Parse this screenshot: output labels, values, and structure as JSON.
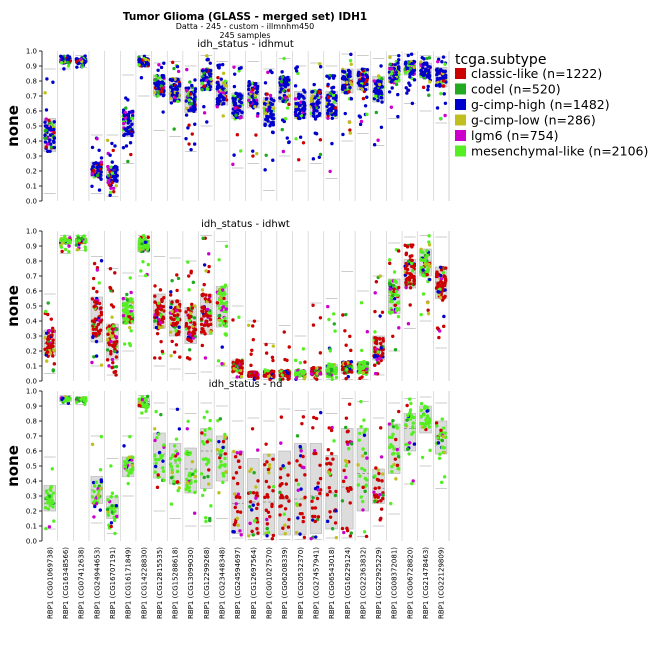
{
  "title": "Tumor Glioma (GLASS - merged set) IDH1",
  "subtitle": "Datta - 245 - custom - illmnhm450",
  "sample_count": "245 samples",
  "legend": {
    "title": "tcga.subtype",
    "items": [
      {
        "label": "classic-like (n=1222)",
        "color": "#cc0000"
      },
      {
        "label": "codel (n=520)",
        "color": "#1faa1f"
      },
      {
        "label": "g-cimp-high (n=1482)",
        "color": "#0000cc"
      },
      {
        "label": "g-cimp-low (n=286)",
        "color": "#bfbf1f"
      },
      {
        "label": "lgm6 (n=754)",
        "color": "#cc00cc"
      },
      {
        "label": "mesenchymal-like (n=2106)",
        "color": "#55ee22"
      }
    ]
  },
  "chart_data": {
    "type": "scatter",
    "ylabel": "none",
    "ylim": [
      0,
      1
    ],
    "yticks": [
      "0.0",
      "0.1",
      "0.2",
      "0.3",
      "0.4",
      "0.5",
      "0.6",
      "0.7",
      "0.8",
      "0.9",
      "1.0"
    ],
    "categories": [
      "RBP1 (CG01069738)",
      "RBP1 (CG16348566)",
      "RBP1 (CG07412638)",
      "RBP1 (CG24944653)",
      "RBP1 (CG16707191)",
      "RBP1 (CG16171849)",
      "RBP1 (CG14228830)",
      "RBP1 (CG12815535)",
      "RBP1 (CG15288618)",
      "RBP1 (CG13099030)",
      "RBP1 (CG12299268)",
      "RBP1 (CG23448348)",
      "RBP1 (CG24594697)",
      "RBP1 (CG12697564)",
      "RBP1 (CG01027570)",
      "RBP1 (CG06208339)",
      "RBP1 (CG20532370)",
      "RBP1 (CG27457941)",
      "RBP1 (CG06543018)",
      "RBP1 (CG16229124)",
      "RBP1 (CG22363832)",
      "RBP1 (CG22925229)",
      "RBP1 (CG08372081)",
      "RBP1 (CG06728820)",
      "RBP1 (CG21478463)",
      "RBP1 (CG22129809)"
    ],
    "panels": [
      {
        "title": "idh_status - idhmut",
        "dominant": [
          "g-cimp-high",
          "g-cimp-high",
          "g-cimp-high",
          "g-cimp-high",
          "g-cimp-high",
          "g-cimp-high",
          "g-cimp-high",
          "g-cimp-high",
          "g-cimp-high",
          "g-cimp-high",
          "g-cimp-high",
          "g-cimp-high",
          "g-cimp-high",
          "g-cimp-high",
          "g-cimp-high",
          "g-cimp-high",
          "g-cimp-high",
          "g-cimp-high",
          "g-cimp-high",
          "g-cimp-high",
          "g-cimp-high",
          "g-cimp-high",
          "g-cimp-high",
          "g-cimp-high",
          "g-cimp-high",
          "g-cimp-high"
        ],
        "box": [
          {
            "q1": 0.33,
            "median": 0.45,
            "q3": 0.55,
            "min": 0.05,
            "max": 0.88
          },
          {
            "q1": 0.92,
            "median": 0.94,
            "q3": 0.95,
            "min": 0.88,
            "max": 0.97
          },
          {
            "q1": 0.92,
            "median": 0.94,
            "q3": 0.95,
            "min": 0.89,
            "max": 0.97
          },
          {
            "q1": 0.16,
            "median": 0.21,
            "q3": 0.26,
            "min": 0.05,
            "max": 0.44
          },
          {
            "q1": 0.12,
            "median": 0.17,
            "q3": 0.23,
            "min": 0.03,
            "max": 0.44
          },
          {
            "q1": 0.43,
            "median": 0.52,
            "q3": 0.6,
            "min": 0.25,
            "max": 0.84
          },
          {
            "q1": 0.9,
            "median": 0.93,
            "q3": 0.95,
            "min": 0.7,
            "max": 0.97
          },
          {
            "q1": 0.7,
            "median": 0.78,
            "q3": 0.84,
            "min": 0.47,
            "max": 0.92
          },
          {
            "q1": 0.66,
            "median": 0.74,
            "q3": 0.82,
            "min": 0.43,
            "max": 0.93
          },
          {
            "q1": 0.59,
            "median": 0.68,
            "q3": 0.76,
            "min": 0.33,
            "max": 0.9
          },
          {
            "q1": 0.74,
            "median": 0.82,
            "q3": 0.88,
            "min": 0.5,
            "max": 0.97
          },
          {
            "q1": 0.64,
            "median": 0.73,
            "q3": 0.8,
            "min": 0.4,
            "max": 0.93
          },
          {
            "q1": 0.55,
            "median": 0.64,
            "q3": 0.72,
            "min": 0.22,
            "max": 0.9
          },
          {
            "q1": 0.62,
            "median": 0.71,
            "q3": 0.79,
            "min": 0.25,
            "max": 0.93
          },
          {
            "q1": 0.5,
            "median": 0.6,
            "q3": 0.69,
            "min": 0.07,
            "max": 0.88
          },
          {
            "q1": 0.66,
            "median": 0.75,
            "q3": 0.83,
            "min": 0.3,
            "max": 0.95
          },
          {
            "q1": 0.55,
            "median": 0.65,
            "q3": 0.73,
            "min": 0.2,
            "max": 0.9
          },
          {
            "q1": 0.56,
            "median": 0.66,
            "q3": 0.74,
            "min": 0.25,
            "max": 0.92
          },
          {
            "q1": 0.55,
            "median": 0.65,
            "q3": 0.73,
            "min": 0.15,
            "max": 0.9
          },
          {
            "q1": 0.72,
            "median": 0.81,
            "q3": 0.88,
            "min": 0.4,
            "max": 0.98
          },
          {
            "q1": 0.74,
            "median": 0.82,
            "q3": 0.88,
            "min": 0.45,
            "max": 0.97
          },
          {
            "q1": 0.66,
            "median": 0.75,
            "q3": 0.83,
            "min": 0.37,
            "max": 0.95
          },
          {
            "q1": 0.79,
            "median": 0.86,
            "q3": 0.91,
            "min": 0.55,
            "max": 0.97
          },
          {
            "q1": 0.84,
            "median": 0.89,
            "q3": 0.93,
            "min": 0.65,
            "max": 0.98
          },
          {
            "q1": 0.82,
            "median": 0.88,
            "q3": 0.92,
            "min": 0.6,
            "max": 0.97
          },
          {
            "q1": 0.76,
            "median": 0.84,
            "q3": 0.89,
            "min": 0.52,
            "max": 0.96
          }
        ]
      },
      {
        "title": "idh_status - idhwt",
        "dominant": [
          "classic-like",
          "mesenchymal-like",
          "mesenchymal-like",
          "classic-like",
          "classic-like",
          "mesenchymal-like",
          "mesenchymal-like",
          "classic-like",
          "classic-like",
          "classic-like",
          "classic-like",
          "mesenchymal-like",
          "classic-like",
          "classic-like",
          "classic-like",
          "classic-like",
          "mesenchymal-like",
          "classic-like",
          "mesenchymal-like",
          "classic-like",
          "mesenchymal-like",
          "classic-like",
          "mesenchymal-like",
          "classic-like",
          "mesenchymal-like",
          "classic-like"
        ],
        "box": [
          {
            "q1": 0.17,
            "median": 0.25,
            "q3": 0.34,
            "min": 0.05,
            "max": 0.58
          },
          {
            "q1": 0.92,
            "median": 0.94,
            "q3": 0.95,
            "min": 0.85,
            "max": 0.97
          },
          {
            "q1": 0.92,
            "median": 0.94,
            "q3": 0.95,
            "min": 0.87,
            "max": 0.97
          },
          {
            "q1": 0.26,
            "median": 0.4,
            "q3": 0.56,
            "min": 0.1,
            "max": 0.83
          },
          {
            "q1": 0.14,
            "median": 0.25,
            "q3": 0.38,
            "min": 0.04,
            "max": 0.75
          },
          {
            "q1": 0.38,
            "median": 0.47,
            "q3": 0.55,
            "min": 0.2,
            "max": 0.72
          },
          {
            "q1": 0.86,
            "median": 0.91,
            "q3": 0.94,
            "min": 0.7,
            "max": 0.97
          },
          {
            "q1": 0.35,
            "median": 0.47,
            "q3": 0.58,
            "min": 0.1,
            "max": 0.83
          },
          {
            "q1": 0.3,
            "median": 0.42,
            "q3": 0.54,
            "min": 0.08,
            "max": 0.82
          },
          {
            "q1": 0.25,
            "median": 0.36,
            "q3": 0.49,
            "min": 0.05,
            "max": 0.8
          },
          {
            "q1": 0.31,
            "median": 0.45,
            "q3": 0.58,
            "min": 0.06,
            "max": 0.97
          },
          {
            "q1": 0.36,
            "median": 0.5,
            "q3": 0.63,
            "min": 0.1,
            "max": 0.93
          },
          {
            "q1": 0.06,
            "median": 0.09,
            "q3": 0.14,
            "min": 0.02,
            "max": 0.5
          },
          {
            "q1": 0.03,
            "median": 0.04,
            "q3": 0.06,
            "min": 0.01,
            "max": 0.4
          },
          {
            "q1": 0.03,
            "median": 0.05,
            "q3": 0.07,
            "min": 0.01,
            "max": 0.25
          },
          {
            "q1": 0.03,
            "median": 0.05,
            "q3": 0.07,
            "min": 0.01,
            "max": 0.37
          },
          {
            "q1": 0.03,
            "median": 0.05,
            "q3": 0.07,
            "min": 0.01,
            "max": 0.3
          },
          {
            "q1": 0.04,
            "median": 0.06,
            "q3": 0.09,
            "min": 0.01,
            "max": 0.52
          },
          {
            "q1": 0.04,
            "median": 0.07,
            "q3": 0.11,
            "min": 0.01,
            "max": 0.55
          },
          {
            "q1": 0.05,
            "median": 0.08,
            "q3": 0.13,
            "min": 0.01,
            "max": 0.73
          },
          {
            "q1": 0.05,
            "median": 0.08,
            "q3": 0.13,
            "min": 0.01,
            "max": 0.6
          },
          {
            "q1": 0.14,
            "median": 0.21,
            "q3": 0.3,
            "min": 0.04,
            "max": 0.7
          },
          {
            "q1": 0.45,
            "median": 0.57,
            "q3": 0.68,
            "min": 0.2,
            "max": 0.92
          },
          {
            "q1": 0.62,
            "median": 0.72,
            "q3": 0.81,
            "min": 0.35,
            "max": 0.96
          },
          {
            "q1": 0.7,
            "median": 0.8,
            "q3": 0.88,
            "min": 0.4,
            "max": 0.97
          },
          {
            "q1": 0.55,
            "median": 0.66,
            "q3": 0.76,
            "min": 0.22,
            "max": 0.96
          }
        ]
      },
      {
        "title": "idh_status - nd",
        "dominant": [
          "mesenchymal-like",
          "mesenchymal-like",
          "mesenchymal-like",
          "mesenchymal-like",
          "mesenchymal-like",
          "mesenchymal-like",
          "mesenchymal-like",
          "mesenchymal-like",
          "mesenchymal-like",
          "mesenchymal-like",
          "mesenchymal-like",
          "mesenchymal-like",
          "classic-like",
          "classic-like",
          "classic-like",
          "classic-like",
          "classic-like",
          "classic-like",
          "classic-like",
          "classic-like",
          "mesenchymal-like",
          "classic-like",
          "mesenchymal-like",
          "mesenchymal-like",
          "mesenchymal-like",
          "mesenchymal-like"
        ],
        "box": [
          {
            "q1": 0.2,
            "median": 0.25,
            "q3": 0.37,
            "min": 0.08,
            "max": 0.56
          },
          {
            "q1": 0.93,
            "median": 0.95,
            "q3": 0.96,
            "min": 0.91,
            "max": 0.97
          },
          {
            "q1": 0.93,
            "median": 0.94,
            "q3": 0.95,
            "min": 0.91,
            "max": 0.96
          },
          {
            "q1": 0.25,
            "median": 0.34,
            "q3": 0.43,
            "min": 0.12,
            "max": 0.7
          },
          {
            "q1": 0.15,
            "median": 0.22,
            "q3": 0.3,
            "min": 0.05,
            "max": 0.55
          },
          {
            "q1": 0.43,
            "median": 0.5,
            "q3": 0.56,
            "min": 0.3,
            "max": 0.7
          },
          {
            "q1": 0.89,
            "median": 0.93,
            "q3": 0.95,
            "min": 0.82,
            "max": 0.97
          },
          {
            "q1": 0.42,
            "median": 0.58,
            "q3": 0.72,
            "min": 0.2,
            "max": 0.92
          },
          {
            "q1": 0.38,
            "median": 0.52,
            "q3": 0.65,
            "min": 0.15,
            "max": 0.88
          },
          {
            "q1": 0.32,
            "median": 0.48,
            "q3": 0.62,
            "min": 0.1,
            "max": 0.85
          },
          {
            "q1": 0.35,
            "median": 0.6,
            "q3": 0.75,
            "min": 0.1,
            "max": 0.92
          },
          {
            "q1": 0.4,
            "median": 0.58,
            "q3": 0.7,
            "min": 0.15,
            "max": 0.9
          },
          {
            "q1": 0.05,
            "median": 0.25,
            "q3": 0.6,
            "min": 0.02,
            "max": 0.8
          },
          {
            "q1": 0.04,
            "median": 0.26,
            "q3": 0.55,
            "min": 0.01,
            "max": 0.82
          },
          {
            "q1": 0.04,
            "median": 0.26,
            "q3": 0.58,
            "min": 0.01,
            "max": 0.8
          },
          {
            "q1": 0.04,
            "median": 0.28,
            "q3": 0.6,
            "min": 0.01,
            "max": 0.88
          },
          {
            "q1": 0.04,
            "median": 0.28,
            "q3": 0.65,
            "min": 0.01,
            "max": 0.87
          },
          {
            "q1": 0.05,
            "median": 0.3,
            "q3": 0.65,
            "min": 0.01,
            "max": 0.88
          },
          {
            "q1": 0.08,
            "median": 0.32,
            "q3": 0.57,
            "min": 0.02,
            "max": 0.85
          },
          {
            "q1": 0.08,
            "median": 0.36,
            "q3": 0.75,
            "min": 0.02,
            "max": 0.95
          },
          {
            "q1": 0.2,
            "median": 0.45,
            "q3": 0.75,
            "min": 0.03,
            "max": 0.93
          },
          {
            "q1": 0.25,
            "median": 0.35,
            "q3": 0.48,
            "min": 0.1,
            "max": 0.82
          },
          {
            "q1": 0.45,
            "median": 0.62,
            "q3": 0.78,
            "min": 0.18,
            "max": 0.92
          },
          {
            "q1": 0.6,
            "median": 0.75,
            "q3": 0.85,
            "min": 0.38,
            "max": 0.95
          },
          {
            "q1": 0.72,
            "median": 0.82,
            "q3": 0.9,
            "min": 0.5,
            "max": 0.96
          },
          {
            "q1": 0.58,
            "median": 0.7,
            "q3": 0.8,
            "min": 0.35,
            "max": 0.92
          }
        ]
      }
    ]
  }
}
